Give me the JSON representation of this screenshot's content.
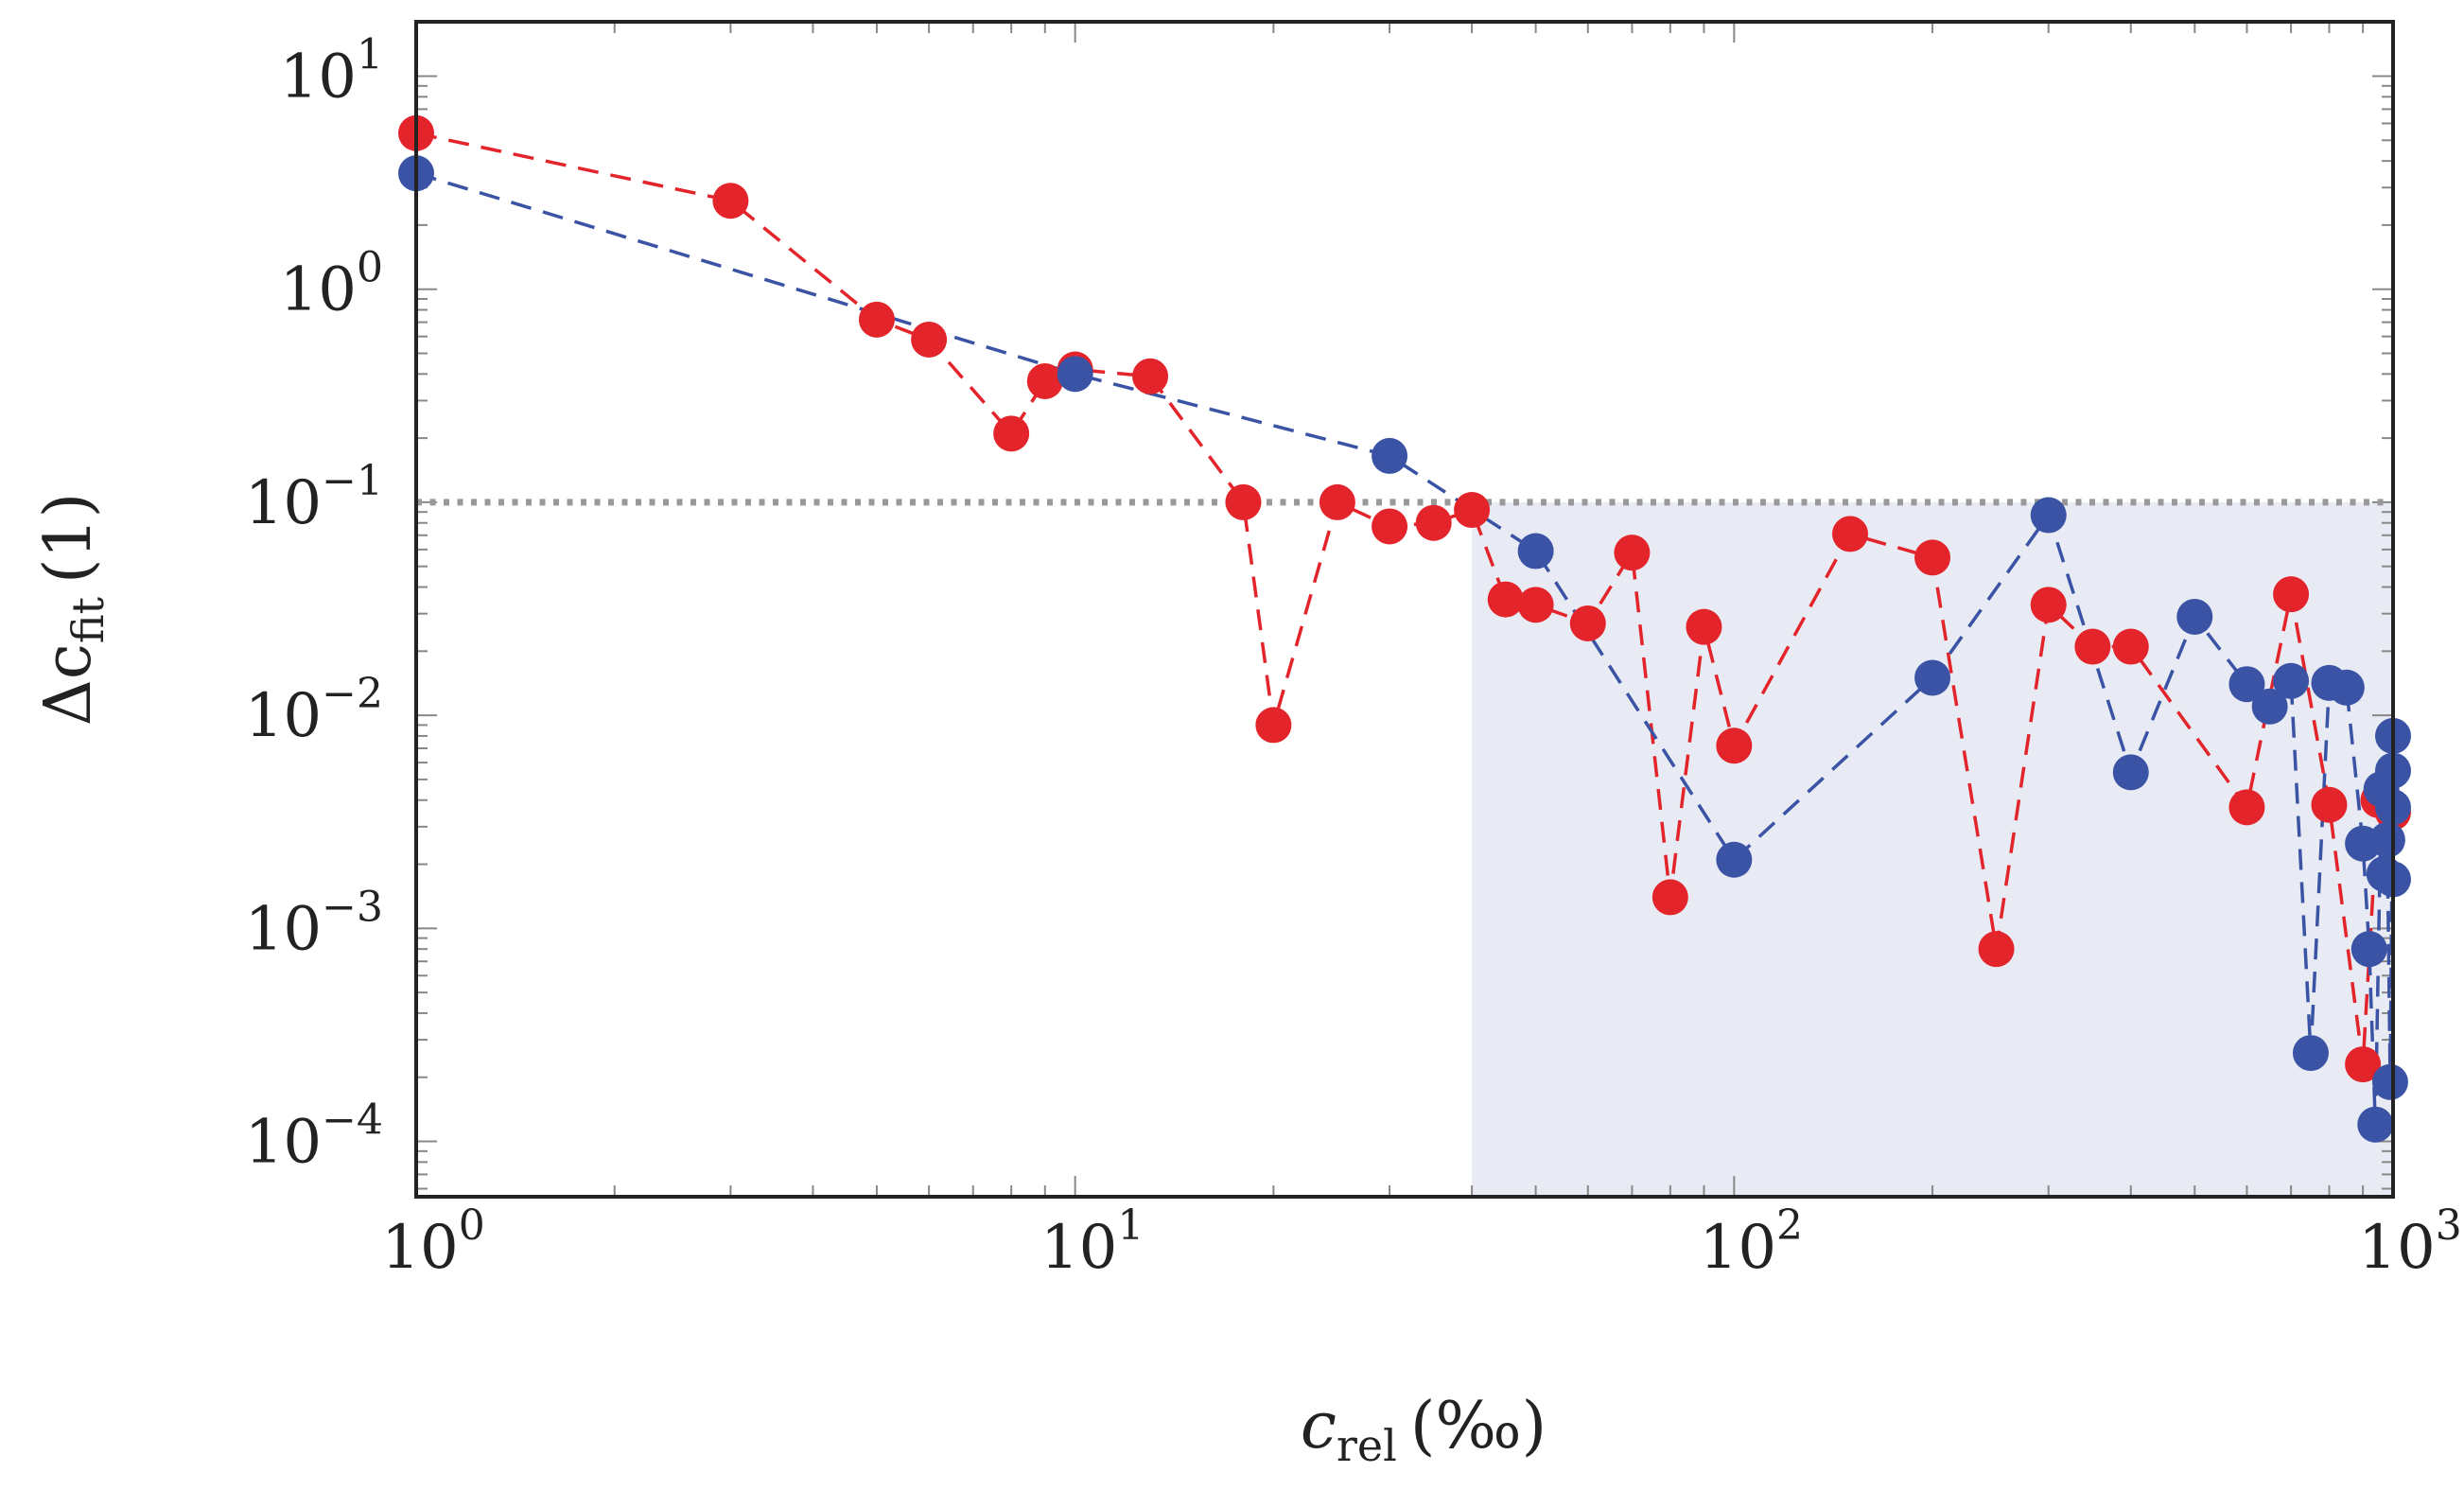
{
  "chart_data": {
    "type": "scatter",
    "x_scale": "log",
    "y_scale": "log",
    "xlim": [
      1,
      1000
    ],
    "ylim": [
      5.5e-05,
      18
    ],
    "xlabel": {
      "base": "c",
      "sub": "rel",
      "unit": "(‰)"
    },
    "ylabel": {
      "base": "Δc",
      "sub": "fit",
      "unit": "(1)"
    },
    "x_ticks": [
      {
        "value": 1,
        "base": "10",
        "exp": "0"
      },
      {
        "value": 10,
        "base": "10",
        "exp": "1"
      },
      {
        "value": 100,
        "base": "10",
        "exp": "2"
      },
      {
        "value": 1000,
        "base": "10",
        "exp": "3"
      }
    ],
    "y_ticks": [
      {
        "value": 10,
        "base": "10",
        "exp": "1"
      },
      {
        "value": 1,
        "base": "10",
        "exp": "0"
      },
      {
        "value": 0.1,
        "base": "10",
        "exp": "−1"
      },
      {
        "value": 0.01,
        "base": "10",
        "exp": "−2"
      },
      {
        "value": 0.001,
        "base": "10",
        "exp": "−3"
      },
      {
        "value": 0.0001,
        "base": "10",
        "exp": "−4"
      }
    ],
    "threshold": {
      "y": 0.1,
      "color": "#999999",
      "style": "dotted"
    },
    "shaded_region": {
      "x_from": 40,
      "x_to": 1000,
      "y_from": 5.5e-05,
      "y_to": 0.1,
      "color": "#e8ebf4"
    },
    "series": [
      {
        "name": "red",
        "color": "#e3242b",
        "line_style": "dashed",
        "points": [
          [
            1,
            5.4
          ],
          [
            3,
            2.6
          ],
          [
            5,
            0.72
          ],
          [
            6,
            0.58
          ],
          [
            8,
            0.21
          ],
          [
            9,
            0.37
          ],
          [
            10,
            0.42
          ],
          [
            13,
            0.39
          ],
          [
            18,
            0.1
          ],
          [
            20,
            0.009
          ],
          [
            25,
            0.1
          ],
          [
            30,
            0.077
          ],
          [
            35,
            0.08
          ],
          [
            40,
            0.092
          ],
          [
            45,
            0.035
          ],
          [
            50,
            0.033
          ],
          [
            60,
            0.027
          ],
          [
            70,
            0.058
          ],
          [
            80,
            0.0014
          ],
          [
            90,
            0.026
          ],
          [
            100,
            0.0072
          ],
          [
            150,
            0.071
          ],
          [
            200,
            0.055
          ],
          [
            250,
            0.0008
          ],
          [
            300,
            0.033
          ],
          [
            350,
            0.021
          ],
          [
            400,
            0.021
          ],
          [
            600,
            0.0037
          ],
          [
            700,
            0.037
          ],
          [
            800,
            0.0038
          ],
          [
            900,
            0.00023
          ],
          [
            950,
            0.004
          ],
          [
            1000,
            0.0035
          ]
        ]
      },
      {
        "name": "blue",
        "color": "#3a53a4",
        "line_style": "dashed",
        "points": [
          [
            1,
            3.5
          ],
          [
            10,
            0.4
          ],
          [
            30,
            0.165
          ],
          [
            50,
            0.059
          ],
          [
            100,
            0.0021
          ],
          [
            200,
            0.015
          ],
          [
            300,
            0.087
          ],
          [
            400,
            0.0054
          ],
          [
            500,
            0.029
          ],
          [
            600,
            0.014
          ],
          [
            650,
            0.011
          ],
          [
            700,
            0.0145
          ],
          [
            750,
            0.00026
          ],
          [
            800,
            0.0142
          ],
          [
            850,
            0.0135
          ],
          [
            900,
            0.0025
          ],
          [
            920,
            0.0008
          ],
          [
            940,
            0.00012
          ],
          [
            960,
            0.0045
          ],
          [
            970,
            0.0018
          ],
          [
            980,
            0.0026
          ],
          [
            990,
            0.00019
          ],
          [
            1000,
            0.008
          ],
          [
            1000,
            0.0055
          ],
          [
            1000,
            0.0037
          ],
          [
            1000,
            0.0017
          ]
        ]
      }
    ]
  }
}
